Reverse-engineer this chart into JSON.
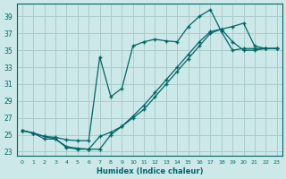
{
  "xlabel": "Humidex (Indice chaleur)",
  "bg_color": "#cce8e8",
  "grid_color": "#aacccc",
  "line_color": "#006666",
  "xlim": [
    -0.5,
    23.5
  ],
  "ylim": [
    22.5,
    40.5
  ],
  "xticks": [
    0,
    1,
    2,
    3,
    4,
    5,
    6,
    7,
    8,
    9,
    10,
    11,
    12,
    13,
    14,
    15,
    16,
    17,
    18,
    19,
    20,
    21,
    22,
    23
  ],
  "yticks": [
    23,
    25,
    27,
    29,
    31,
    33,
    35,
    37,
    39
  ],
  "line1_x": [
    0,
    1,
    2,
    3,
    4,
    5,
    6,
    7,
    8,
    9,
    10,
    11,
    12,
    13,
    14,
    15,
    16,
    17,
    18,
    19,
    20,
    21,
    22,
    23
  ],
  "line1_y": [
    25.5,
    25.2,
    24.8,
    24.7,
    24.4,
    24.3,
    24.3,
    34.2,
    29.5,
    30.5,
    35.5,
    36.0,
    36.3,
    36.1,
    36.0,
    37.8,
    39.0,
    39.8,
    37.2,
    35.0,
    35.2,
    35.2,
    35.2,
    35.2
  ],
  "line2_x": [
    0,
    1,
    2,
    3,
    4,
    5,
    6,
    7,
    8,
    9,
    10,
    11,
    12,
    13,
    14,
    15,
    16,
    17,
    18,
    19,
    20,
    21,
    22,
    23
  ],
  "line2_y": [
    25.5,
    25.2,
    24.8,
    24.5,
    23.6,
    23.4,
    23.3,
    23.3,
    25.0,
    26.0,
    27.2,
    28.5,
    30.0,
    31.5,
    33.0,
    34.5,
    36.0,
    37.2,
    37.5,
    37.8,
    38.2,
    35.5,
    35.2,
    35.2
  ],
  "line3_x": [
    0,
    1,
    2,
    3,
    4,
    5,
    6,
    7,
    8,
    9,
    10,
    11,
    12,
    13,
    14,
    15,
    16,
    17,
    18,
    19,
    20,
    21,
    22,
    23
  ],
  "line3_y": [
    25.5,
    25.2,
    24.5,
    24.5,
    23.5,
    23.3,
    23.3,
    24.8,
    25.3,
    26.0,
    27.0,
    28.0,
    29.5,
    31.0,
    32.5,
    34.0,
    35.5,
    37.0,
    37.5,
    36.0,
    35.0,
    35.0,
    35.2,
    35.2
  ]
}
